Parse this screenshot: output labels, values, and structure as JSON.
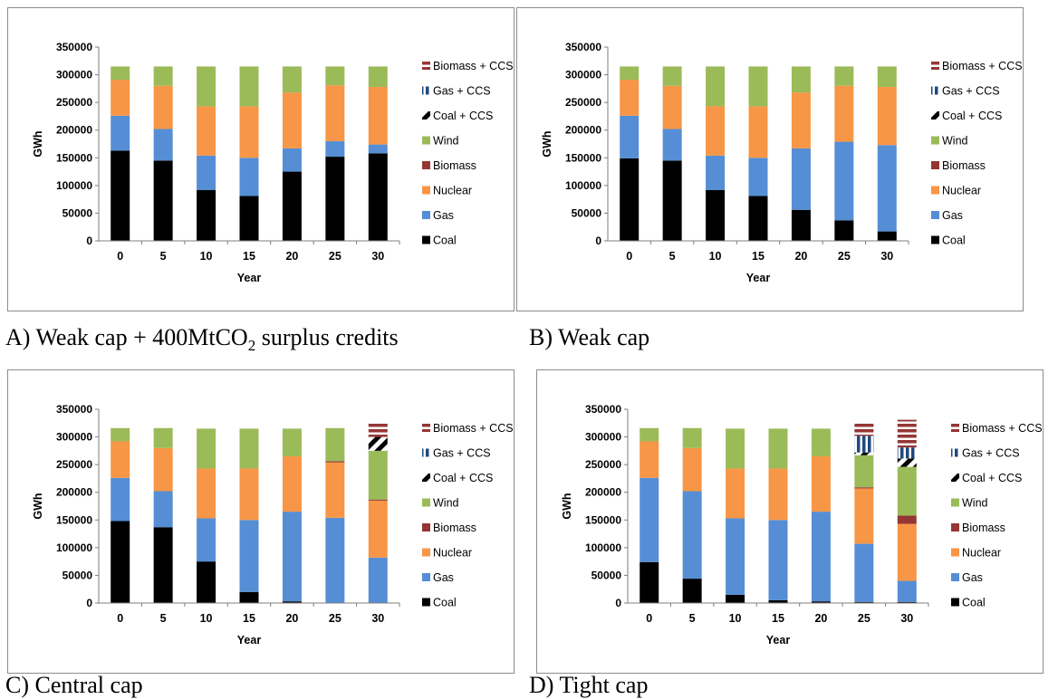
{
  "series_order": [
    "Coal",
    "Gas",
    "Nuclear",
    "Biomass",
    "Wind",
    "Coal + CCS",
    "Gas + CCS",
    "Biomass + CCS"
  ],
  "legend_order": [
    "Biomass + CCS",
    "Gas + CCS",
    "Coal + CCS",
    "Wind",
    "Biomass",
    "Nuclear",
    "Gas",
    "Coal"
  ],
  "colors": {
    "Coal": "#000000",
    "Gas": "#558ed5",
    "Nuclear": "#f79646",
    "Biomass": "#943634",
    "Wind": "#9bbb59",
    "Coal + CCS": "#000000",
    "Gas + CCS": "#1f497d",
    "Biomass + CCS": "#943634"
  },
  "chart_data": [
    {
      "type": "bar",
      "stacked": true,
      "xlabel": "Year",
      "ylabel": "GWh",
      "ylim": [
        0,
        350000
      ],
      "yticks": [
        "0",
        "50000",
        "100000",
        "150000",
        "200000",
        "250000",
        "300000",
        "350000"
      ],
      "categories": [
        "0",
        "5",
        "10",
        "15",
        "20",
        "25",
        "30"
      ],
      "grid": false,
      "legend_position": "right",
      "series": [
        {
          "name": "Coal",
          "values": [
            163000,
            145000,
            92000,
            81000,
            125000,
            152000,
            158000
          ]
        },
        {
          "name": "Gas",
          "values": [
            63000,
            57000,
            62000,
            69000,
            42000,
            28000,
            16000
          ]
        },
        {
          "name": "Nuclear",
          "values": [
            65000,
            78000,
            89000,
            93000,
            101000,
            101000,
            104000
          ]
        },
        {
          "name": "Biomass",
          "values": [
            0,
            0,
            0,
            0,
            0,
            0,
            0
          ]
        },
        {
          "name": "Wind",
          "values": [
            24000,
            35000,
            72000,
            72000,
            47000,
            34000,
            37000
          ]
        },
        {
          "name": "Coal + CCS",
          "values": [
            0,
            0,
            0,
            0,
            0,
            0,
            0
          ]
        },
        {
          "name": "Gas + CCS",
          "values": [
            0,
            0,
            0,
            0,
            0,
            0,
            0
          ]
        },
        {
          "name": "Biomass + CCS",
          "values": [
            0,
            0,
            0,
            0,
            0,
            0,
            0
          ]
        }
      ]
    },
    {
      "type": "bar",
      "stacked": true,
      "xlabel": "Year",
      "ylabel": "GWh",
      "ylim": [
        0,
        350000
      ],
      "yticks": [
        "0",
        "50000",
        "100000",
        "150000",
        "200000",
        "250000",
        "300000",
        "350000"
      ],
      "categories": [
        "0",
        "5",
        "10",
        "15",
        "20",
        "25",
        "30"
      ],
      "grid": false,
      "legend_position": "right",
      "series": [
        {
          "name": "Coal",
          "values": [
            149000,
            145000,
            92000,
            81000,
            56000,
            37000,
            17000
          ]
        },
        {
          "name": "Gas",
          "values": [
            77000,
            57000,
            62000,
            69000,
            111000,
            142000,
            156000
          ]
        },
        {
          "name": "Nuclear",
          "values": [
            65000,
            78000,
            89000,
            93000,
            101000,
            101000,
            105000
          ]
        },
        {
          "name": "Biomass",
          "values": [
            0,
            0,
            0,
            0,
            0,
            0,
            0
          ]
        },
        {
          "name": "Wind",
          "values": [
            24000,
            35000,
            72000,
            72000,
            47000,
            35000,
            37000
          ]
        },
        {
          "name": "Coal + CCS",
          "values": [
            0,
            0,
            0,
            0,
            0,
            0,
            0
          ]
        },
        {
          "name": "Gas + CCS",
          "values": [
            0,
            0,
            0,
            0,
            0,
            0,
            0
          ]
        },
        {
          "name": "Biomass + CCS",
          "values": [
            0,
            0,
            0,
            0,
            0,
            0,
            0
          ]
        }
      ]
    },
    {
      "type": "bar",
      "stacked": true,
      "xlabel": "Year",
      "ylabel": "GWh",
      "ylim": [
        0,
        350000
      ],
      "yticks": [
        "0",
        "50000",
        "100000",
        "150000",
        "200000",
        "250000",
        "300000",
        "350000"
      ],
      "categories": [
        "0",
        "5",
        "10",
        "15",
        "20",
        "25",
        "30"
      ],
      "grid": false,
      "legend_position": "right",
      "series": [
        {
          "name": "Coal",
          "values": [
            148000,
            137000,
            75000,
            20000,
            3000,
            0,
            0
          ]
        },
        {
          "name": "Gas",
          "values": [
            78000,
            65000,
            78000,
            130000,
            162000,
            154000,
            82000
          ]
        },
        {
          "name": "Nuclear",
          "values": [
            66000,
            78000,
            90000,
            93000,
            100000,
            100000,
            103000
          ]
        },
        {
          "name": "Biomass",
          "values": [
            0,
            0,
            0,
            0,
            0,
            2000,
            2000
          ]
        },
        {
          "name": "Wind",
          "values": [
            24000,
            36000,
            72000,
            72000,
            50000,
            60000,
            88000
          ]
        },
        {
          "name": "Coal + CCS",
          "values": [
            0,
            0,
            0,
            0,
            0,
            0,
            25000
          ]
        },
        {
          "name": "Gas + CCS",
          "values": [
            0,
            0,
            0,
            0,
            0,
            0,
            0
          ]
        },
        {
          "name": "Biomass + CCS",
          "values": [
            0,
            0,
            0,
            0,
            0,
            0,
            24000
          ]
        }
      ]
    },
    {
      "type": "bar",
      "stacked": true,
      "xlabel": "Year",
      "ylabel": "GWh",
      "ylim": [
        0,
        350000
      ],
      "yticks": [
        "0",
        "50000",
        "100000",
        "150000",
        "200000",
        "250000",
        "300000",
        "350000"
      ],
      "categories": [
        "0",
        "5",
        "10",
        "15",
        "20",
        "25",
        "30"
      ],
      "grid": false,
      "legend_position": "right",
      "series": [
        {
          "name": "Coal",
          "values": [
            74000,
            44000,
            15000,
            5000,
            3000,
            2000,
            2000
          ]
        },
        {
          "name": "Gas",
          "values": [
            152000,
            158000,
            138000,
            145000,
            162000,
            105000,
            38000
          ]
        },
        {
          "name": "Nuclear",
          "values": [
            66000,
            78000,
            90000,
            93000,
            100000,
            100000,
            103000
          ]
        },
        {
          "name": "Biomass",
          "values": [
            0,
            0,
            0,
            0,
            0,
            2000,
            15000
          ]
        },
        {
          "name": "Wind",
          "values": [
            24000,
            36000,
            72000,
            72000,
            50000,
            58000,
            88000
          ]
        },
        {
          "name": "Coal + CCS",
          "values": [
            0,
            0,
            0,
            0,
            0,
            5000,
            15000
          ]
        },
        {
          "name": "Gas + CCS",
          "values": [
            0,
            0,
            0,
            0,
            0,
            30000,
            20000
          ]
        },
        {
          "name": "Biomass + CCS",
          "values": [
            0,
            0,
            0,
            0,
            0,
            25000,
            50000
          ]
        }
      ]
    }
  ],
  "captions": [
    {
      "prefix": "A) Weak cap + 400MtCO",
      "sub": "2",
      "suffix": " surplus credits"
    },
    {
      "prefix": "B) Weak cap",
      "sub": "",
      "suffix": ""
    },
    {
      "prefix": "C) Central cap",
      "sub": "",
      "suffix": ""
    },
    {
      "prefix": "D) Tight cap",
      "sub": "",
      "suffix": ""
    }
  ]
}
